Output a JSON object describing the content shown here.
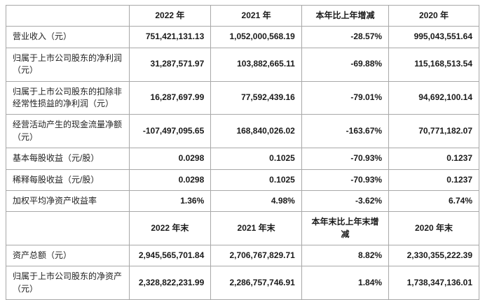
{
  "table": {
    "column_widths_pct": [
      26,
      17.3,
      19.2,
      18.4,
      19.1
    ],
    "border_color": "#a8a8a8",
    "sections": [
      {
        "headers": [
          "",
          "2022 年",
          "2021 年",
          "本年比上年增减",
          "2020 年"
        ],
        "rows": [
          {
            "label": "营业收入（元）",
            "values": [
              "751,421,131.13",
              "1,052,000,568.19",
              "-28.57%",
              "995,043,551.64"
            ]
          },
          {
            "label": "归属于上市公司股东的净利润（元）",
            "values": [
              "31,287,571.97",
              "103,882,665.11",
              "-69.88%",
              "115,168,513.54"
            ]
          },
          {
            "label": "归属于上市公司股东的扣除非经常性损益的净利润（元）",
            "values": [
              "16,287,697.99",
              "77,592,439.16",
              "-79.01%",
              "94,692,100.14"
            ]
          },
          {
            "label": "经营活动产生的现金流量净额（元）",
            "values": [
              "-107,497,095.65",
              "168,840,026.02",
              "-163.67%",
              "70,771,182.07"
            ]
          },
          {
            "label": "基本每股收益（元/股）",
            "values": [
              "0.0298",
              "0.1025",
              "-70.93%",
              "0.1237"
            ]
          },
          {
            "label": "稀释每股收益（元/股）",
            "values": [
              "0.0298",
              "0.1025",
              "-70.93%",
              "0.1237"
            ]
          },
          {
            "label": "加权平均净资产收益率",
            "values": [
              "1.36%",
              "4.98%",
              "-3.62%",
              "6.74%"
            ]
          }
        ]
      },
      {
        "headers": [
          "",
          "2022 年末",
          "2021 年末",
          "本年末比上年末增减",
          "2020 年末"
        ],
        "rows": [
          {
            "label": "资产总额（元）",
            "values": [
              "2,945,565,701.84",
              "2,706,767,829.71",
              "8.82%",
              "2,330,355,222.39"
            ]
          },
          {
            "label": "归属于上市公司股东的净资产（元）",
            "values": [
              "2,328,822,231.99",
              "2,286,757,746.91",
              "1.84%",
              "1,738,347,136.01"
            ]
          }
        ]
      }
    ]
  }
}
